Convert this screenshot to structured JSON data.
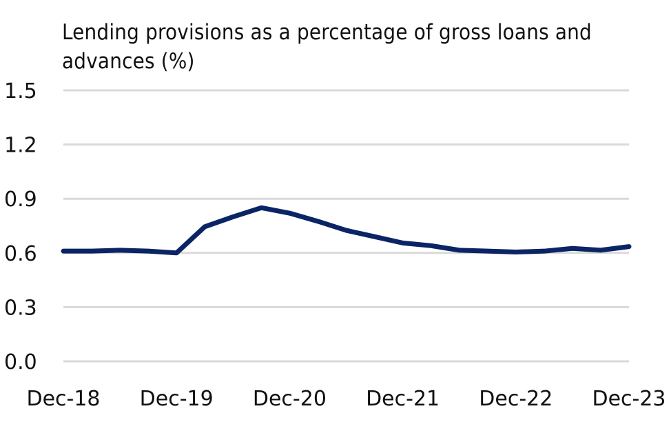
{
  "chart_data": {
    "type": "line",
    "title": "Lending provisions as a percentage of gross loans and advances (%)",
    "xlabel": "",
    "ylabel": "",
    "ylim": [
      0,
      1.5
    ],
    "yticks": [
      "0.0",
      "0.3",
      "0.6",
      "0.9",
      "1.2",
      "1.5"
    ],
    "xtick_labels": [
      "Dec-18",
      "Dec-19",
      "Dec-20",
      "Dec-21",
      "Dec-22",
      "Dec-23"
    ],
    "x": [
      "Dec-18",
      "Mar-19",
      "Jun-19",
      "Sep-19",
      "Dec-19",
      "Mar-20",
      "Jun-20",
      "Sep-20",
      "Dec-20",
      "Mar-21",
      "Jun-21",
      "Sep-21",
      "Dec-21",
      "Mar-22",
      "Jun-22",
      "Sep-22",
      "Dec-22",
      "Mar-23",
      "Jun-23",
      "Sep-23",
      "Dec-23"
    ],
    "series": [
      {
        "values": [
          0.61,
          0.61,
          0.615,
          0.61,
          0.6,
          0.745,
          0.8,
          0.85,
          0.82,
          0.775,
          0.725,
          0.69,
          0.655,
          0.64,
          0.615,
          0.61,
          0.605,
          0.61,
          0.625,
          0.615,
          0.635
        ]
      }
    ],
    "grid": true,
    "line_color": "#0b2466",
    "grid_color": "#d9d9d9"
  }
}
